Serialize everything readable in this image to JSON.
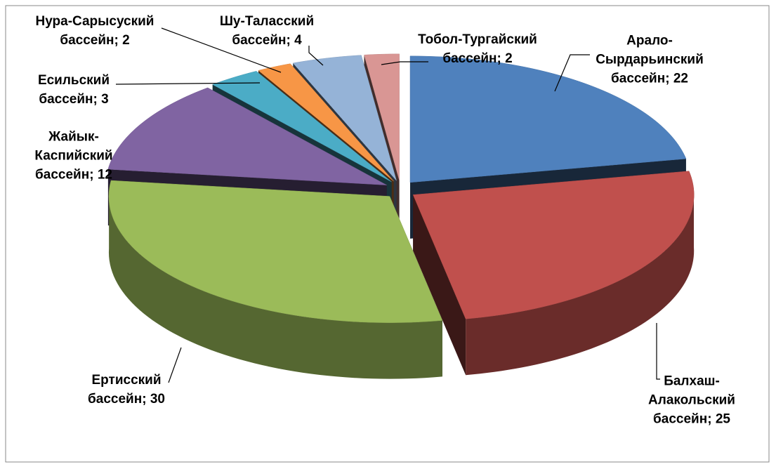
{
  "chart_data": {
    "type": "pie3d",
    "values": [
      22,
      25,
      30,
      12,
      3,
      2,
      4,
      2
    ],
    "value_labels": [
      "Арало-Сырдарьинский бассейн; 22",
      "Балхаш-Алакольский бассейн; 25",
      "Ертисский бассейн; 30",
      "Жайык-Каспийский бассейн; 12",
      "Есильский бассейн; 3",
      "Нура-Сарысуский бассейн; 2",
      "Шу-Таласский бассейн; 4",
      "Тобол-Тургайский бассейн; 2"
    ],
    "colors": [
      "#4f81bd",
      "#c0504d",
      "#9bbb59",
      "#8064a2",
      "#4bacc6",
      "#f79646",
      "#95b3d7",
      "#d99694"
    ]
  }
}
